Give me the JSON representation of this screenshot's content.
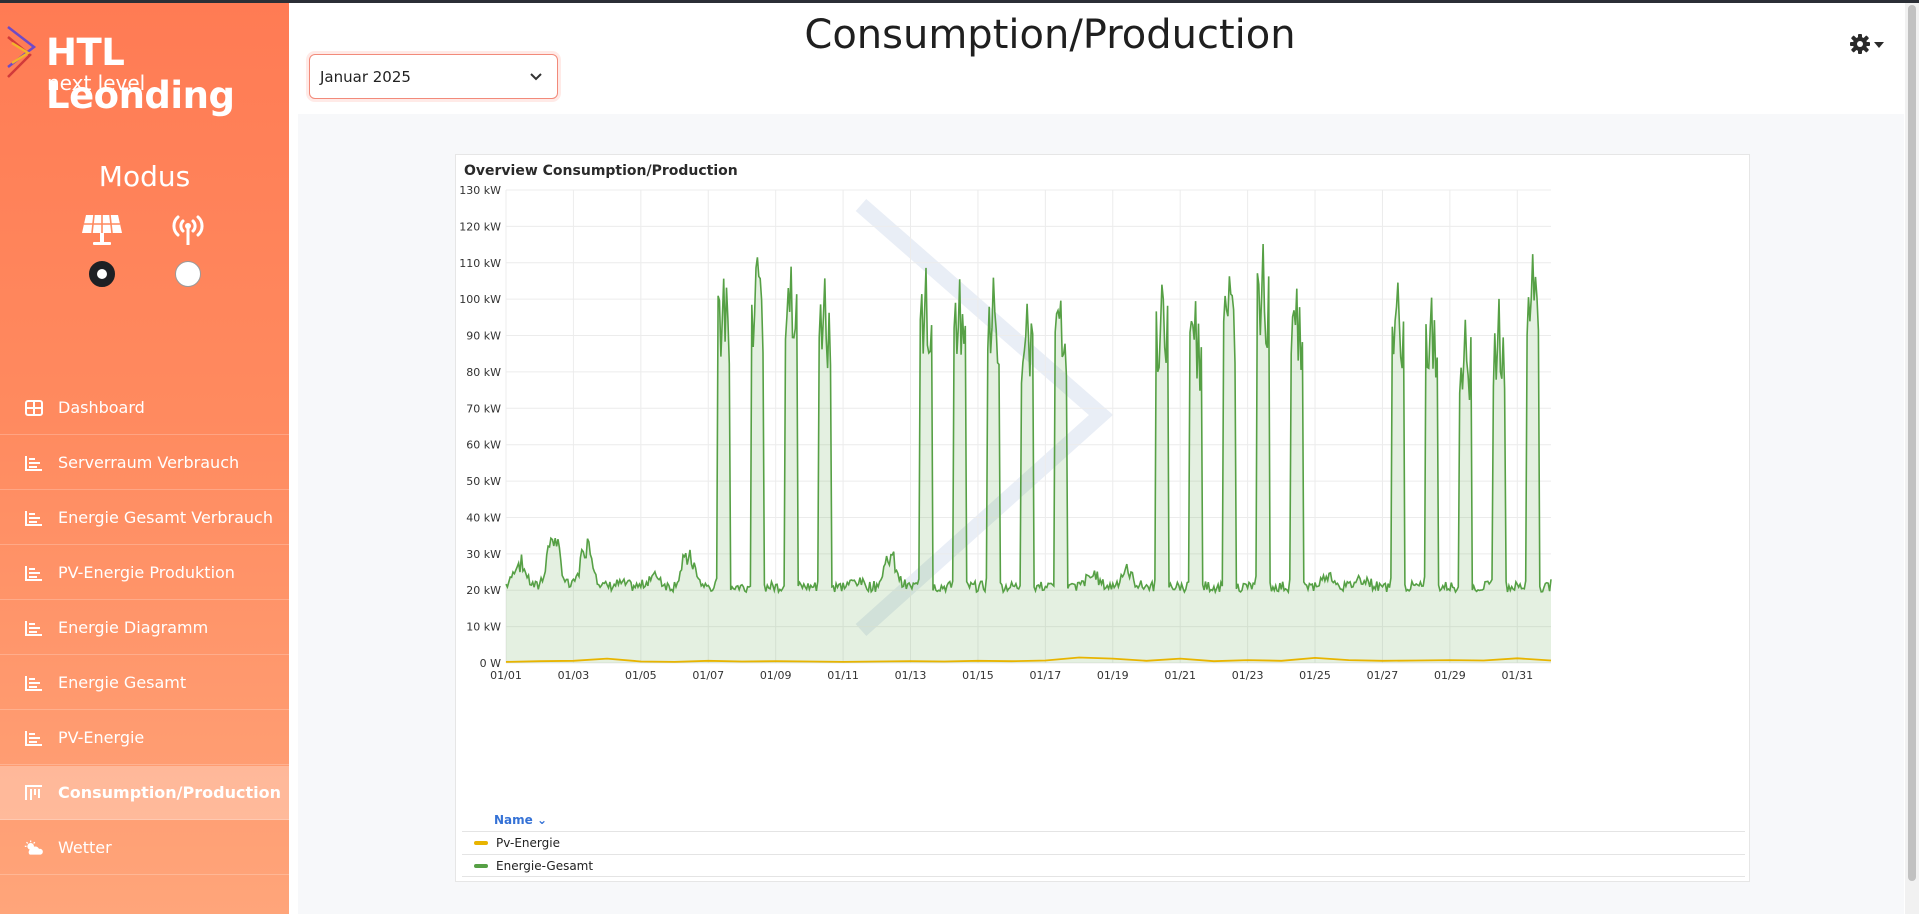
{
  "app": {
    "logo_title": "HTL Leonding",
    "logo_subtitle": "next level"
  },
  "sidebar": {
    "modus_title": "Modus",
    "modes": [
      {
        "icon": "solar-panel-icon",
        "selected": true
      },
      {
        "icon": "broadcast-tower-icon",
        "selected": false
      }
    ],
    "items": [
      {
        "label": "Dashboard",
        "icon": "dashboard-grid-icon",
        "active": false
      },
      {
        "label": "Serverraum Verbrauch",
        "icon": "bar-chart-icon",
        "active": false
      },
      {
        "label": "Energie Gesamt Verbrauch",
        "icon": "bar-chart-icon",
        "active": false
      },
      {
        "label": "PV-Energie Produktion",
        "icon": "bar-chart-icon",
        "active": false
      },
      {
        "label": "Energie Diagramm",
        "icon": "bar-chart-icon",
        "active": false
      },
      {
        "label": "Energie Gesamt",
        "icon": "bar-chart-icon",
        "active": false
      },
      {
        "label": "PV-Energie",
        "icon": "bar-chart-icon",
        "active": false
      },
      {
        "label": "Consumption/Production",
        "icon": "column-chart-icon",
        "active": true
      },
      {
        "label": "Wetter",
        "icon": "cloud-sun-icon",
        "active": false
      }
    ]
  },
  "header": {
    "month_select_value": "Januar 2025",
    "page_title": "Consumption/Production"
  },
  "colors": {
    "accent": "#ff7b54",
    "series_total": "#56a045",
    "series_pv": "#e8b400"
  },
  "chart_data": {
    "type": "area",
    "title": "Overview Consumption/Production",
    "x_ticks": [
      "01/01",
      "01/03",
      "01/05",
      "01/07",
      "01/09",
      "01/11",
      "01/13",
      "01/15",
      "01/17",
      "01/19",
      "01/21",
      "01/23",
      "01/25",
      "01/27",
      "01/29",
      "01/31"
    ],
    "y_ticks": [
      "0 W",
      "10 kW",
      "20 kW",
      "30 kW",
      "40 kW",
      "50 kW",
      "60 kW",
      "70 kW",
      "80 kW",
      "90 kW",
      "100 kW",
      "110 kW",
      "120 kW",
      "130 kW"
    ],
    "y_range_kw": [
      0,
      130
    ],
    "x_range_days": [
      1,
      32
    ],
    "grid": true,
    "legend_header": "Name",
    "legend_position": "bottom",
    "series": [
      {
        "name": "Pv-Energie",
        "color": "#e8b400",
        "points_day_kw": [
          [
            1,
            0.3
          ],
          [
            2,
            0.5
          ],
          [
            3,
            0.6
          ],
          [
            4,
            1.2
          ],
          [
            5,
            0.4
          ],
          [
            6,
            0.3
          ],
          [
            7,
            0.6
          ],
          [
            8,
            0.4
          ],
          [
            9,
            0.5
          ],
          [
            10,
            0.4
          ],
          [
            11,
            0.3
          ],
          [
            12,
            0.4
          ],
          [
            13,
            0.5
          ],
          [
            14,
            0.4
          ],
          [
            15,
            0.6
          ],
          [
            16,
            0.5
          ],
          [
            17,
            0.7
          ],
          [
            18,
            1.5
          ],
          [
            19,
            1.2
          ],
          [
            20,
            0.6
          ],
          [
            21,
            1.2
          ],
          [
            22,
            0.5
          ],
          [
            23,
            0.8
          ],
          [
            24,
            0.6
          ],
          [
            25,
            1.4
          ],
          [
            26,
            0.8
          ],
          [
            27,
            0.6
          ],
          [
            28,
            0.7
          ],
          [
            29,
            0.8
          ],
          [
            30,
            0.7
          ],
          [
            31,
            1.3
          ],
          [
            32,
            0.7
          ]
        ]
      },
      {
        "name": "Energie-Gesamt",
        "color": "#56a045",
        "daily_peaks_kw": [
          {
            "day": 1,
            "peak": 29
          },
          {
            "day": 2,
            "peak": 38
          },
          {
            "day": 3,
            "peak": 36
          },
          {
            "day": 4,
            "peak": 22
          },
          {
            "day": 5,
            "peak": 25
          },
          {
            "day": 6,
            "peak": 32
          },
          {
            "day": 7,
            "peak": 107
          },
          {
            "day": 8,
            "peak": 113
          },
          {
            "day": 9,
            "peak": 110
          },
          {
            "day": 10,
            "peak": 107
          },
          {
            "day": 11,
            "peak": 23
          },
          {
            "day": 12,
            "peak": 31
          },
          {
            "day": 13,
            "peak": 109
          },
          {
            "day": 14,
            "peak": 105
          },
          {
            "day": 15,
            "peak": 105
          },
          {
            "day": 16,
            "peak": 99
          },
          {
            "day": 17,
            "peak": 101
          },
          {
            "day": 18,
            "peak": 25
          },
          {
            "day": 19,
            "peak": 26
          },
          {
            "day": 20,
            "peak": 104
          },
          {
            "day": 21,
            "peak": 98
          },
          {
            "day": 22,
            "peak": 106
          },
          {
            "day": 23,
            "peak": 114
          },
          {
            "day": 24,
            "peak": 103
          },
          {
            "day": 25,
            "peak": 25
          },
          {
            "day": 26,
            "peak": 24
          },
          {
            "day": 27,
            "peak": 105
          },
          {
            "day": 28,
            "peak": 101
          },
          {
            "day": 29,
            "peak": 94
          },
          {
            "day": 30,
            "peak": 99
          },
          {
            "day": 31,
            "peak": 112
          }
        ],
        "baseline_kw": 21
      }
    ]
  }
}
